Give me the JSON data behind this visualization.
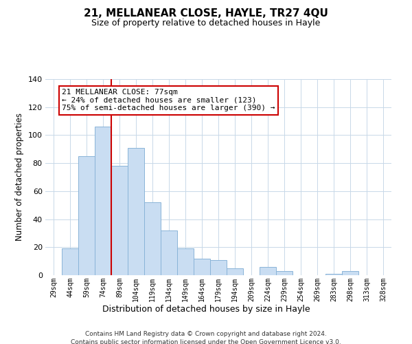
{
  "title": "21, MELLANEAR CLOSE, HAYLE, TR27 4QU",
  "subtitle": "Size of property relative to detached houses in Hayle",
  "xlabel": "Distribution of detached houses by size in Hayle",
  "ylabel": "Number of detached properties",
  "categories": [
    "29sqm",
    "44sqm",
    "59sqm",
    "74sqm",
    "89sqm",
    "104sqm",
    "119sqm",
    "134sqm",
    "149sqm",
    "164sqm",
    "179sqm",
    "194sqm",
    "209sqm",
    "224sqm",
    "239sqm",
    "254sqm",
    "269sqm",
    "283sqm",
    "298sqm",
    "313sqm",
    "328sqm"
  ],
  "values": [
    0,
    19,
    85,
    106,
    78,
    91,
    52,
    32,
    19,
    12,
    11,
    5,
    0,
    6,
    3,
    0,
    0,
    1,
    3,
    0,
    0
  ],
  "bar_color": "#c9ddf2",
  "bar_edge_color": "#8ab4d8",
  "ylim": [
    0,
    140
  ],
  "yticks": [
    0,
    20,
    40,
    60,
    80,
    100,
    120,
    140
  ],
  "vline_color": "#cc0000",
  "annotation_line1": "21 MELLANEAR CLOSE: 77sqm",
  "annotation_line2": "← 24% of detached houses are smaller (123)",
  "annotation_line3": "75% of semi-detached houses are larger (390) →",
  "annotation_box_color": "#ffffff",
  "annotation_box_edge": "#cc0000",
  "footer1": "Contains HM Land Registry data © Crown copyright and database right 2024.",
  "footer2": "Contains public sector information licensed under the Open Government Licence v3.0.",
  "background_color": "#ffffff",
  "grid_color": "#c8d8e8"
}
